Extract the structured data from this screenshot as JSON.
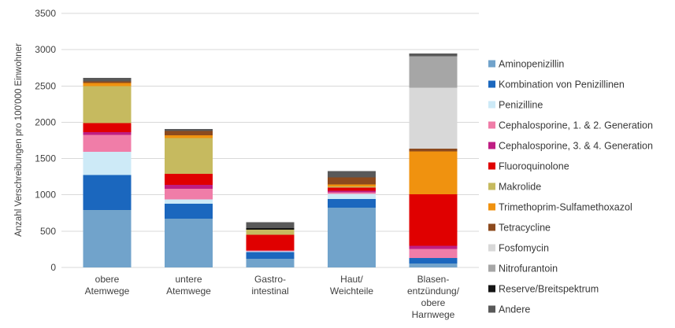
{
  "colors": {
    "background": "#ffffff",
    "gridline": "#d9d9d9",
    "axis_text": "#404040",
    "legend_text": "#383838"
  },
  "chart_data": {
    "type": "bar",
    "stacked": true,
    "title": "",
    "xlabel": "",
    "ylabel": "Anzahl Verschreibungen pro 100'000 Einwohner",
    "ylim": [
      0,
      3500
    ],
    "yticks": [
      0,
      500,
      1000,
      1500,
      2000,
      2500,
      3000,
      3500
    ],
    "grid": true,
    "legend_position": "right",
    "categories": [
      {
        "label": "obere Atemwege",
        "lines": [
          "obere",
          "Atemwege"
        ]
      },
      {
        "label": "untere Atemwege",
        "lines": [
          "untere",
          "Atemwege"
        ]
      },
      {
        "label": "Gastro-intestinal",
        "lines": [
          "Gastro-",
          "intestinal"
        ]
      },
      {
        "label": "Haut/Weichteile",
        "lines": [
          "Haut/",
          "Weichteile"
        ]
      },
      {
        "label": "Blasen-entzündung/obere Harnwege",
        "lines": [
          "Blasen-",
          "entzündung/",
          "obere",
          "Harnwege"
        ]
      }
    ],
    "series": [
      {
        "name": "Aminopenizillin",
        "color": "#71a3cb",
        "values": [
          790,
          670,
          120,
          825,
          55
        ]
      },
      {
        "name": "Kombination von Penizillinen",
        "color": "#1b67be",
        "values": [
          485,
          210,
          90,
          120,
          75
        ]
      },
      {
        "name": "Penizilline",
        "color": "#cdeaf7",
        "values": [
          320,
          55,
          15,
          70,
          0
        ]
      },
      {
        "name": "Cephalosporine, 1. & 2. Generation",
        "color": "#f07da8",
        "values": [
          230,
          150,
          10,
          20,
          125
        ]
      },
      {
        "name": "Cephalosporine, 3. & 4. Generation",
        "color": "#bf1e83",
        "values": [
          40,
          55,
          0,
          20,
          45
        ]
      },
      {
        "name": "Fluoroquinolone",
        "color": "#e00000",
        "values": [
          125,
          150,
          215,
          45,
          710
        ]
      },
      {
        "name": "Makrolide",
        "color": "#c6ba5f",
        "values": [
          510,
          490,
          70,
          15,
          0
        ]
      },
      {
        "name": "Trimethoprim-Sulfamethoxazol",
        "color": "#f0920f",
        "values": [
          40,
          40,
          0,
          30,
          590
        ]
      },
      {
        "name": "Tetracycline",
        "color": "#8c4a1e",
        "values": [
          20,
          60,
          0,
          95,
          35
        ]
      },
      {
        "name": "Fosfomycin",
        "color": "#d8d8d8",
        "values": [
          0,
          0,
          0,
          0,
          840
        ]
      },
      {
        "name": "Nitrofurantoin",
        "color": "#a6a6a6",
        "values": [
          0,
          0,
          0,
          0,
          435
        ]
      },
      {
        "name": "Reserve/Breitspektrum",
        "color": "#141414",
        "values": [
          0,
          0,
          20,
          0,
          0
        ]
      },
      {
        "name": "Andere",
        "color": "#595959",
        "values": [
          50,
          25,
          85,
          90,
          40
        ]
      }
    ]
  }
}
